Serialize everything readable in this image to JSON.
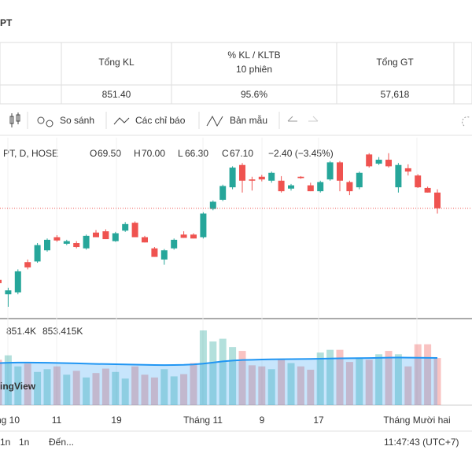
{
  "header": {
    "title": "PT"
  },
  "table": {
    "headers": [
      "Tổng KL",
      "% KL / KLTB",
      "10 phiên",
      "Tổng GT"
    ],
    "values": [
      "851.40",
      "95.6%",
      "57,618"
    ]
  },
  "toolbar": {
    "items": [
      "So sánh",
      "Các chỉ báo",
      "Bản mẫu"
    ]
  },
  "legend": {
    "symbol": "PT, D, HOSE",
    "o_label": "O",
    "o": "69.50",
    "h_label": "H",
    "h": "70.00",
    "l_label": "L",
    "l": "66.30",
    "c_label": "C",
    "c": "67.10",
    "change": "−2.40 (−3.45%)",
    "volume": "851.4K",
    "volume_ma": "853.415K",
    "watermark": "ingView"
  },
  "footer": {
    "ranges": [
      "1n",
      "1n",
      "Đến..."
    ],
    "time": "11:47:43 (UTC+7)"
  },
  "chart_data": {
    "type": "candlestick",
    "x_labels": [
      "ng 10",
      "11",
      "19",
      "Tháng 11",
      "9",
      "17",
      "Tháng Mười hai"
    ],
    "ylim": [
      50.3,
      77.5
    ],
    "volume_lim": [
      0,
      1450
    ],
    "up_color": "#26a69a",
    "down_color": "#ef5350",
    "open": [
      56.2,
      54.0,
      54.3,
      58.9,
      59.0,
      60.7,
      62.7,
      61.7,
      61.8,
      61.0,
      63.4,
      63.6,
      62.1,
      63.7,
      64.9,
      62.7,
      61.0,
      59.3,
      61.0,
      63.1,
      63.1,
      62.7,
      67.0,
      68.4,
      70.3,
      73.7,
      71.5,
      71.9,
      71.3,
      71.3,
      70.1,
      71.9,
      70.6,
      69.7,
      71.5,
      74.1,
      71.1,
      70.3,
      75.3,
      73.9,
      74.5,
      70.3,
      73.2,
      72.1,
      70.2,
      69.5
    ],
    "high": [
      56.6,
      55.0,
      57.8,
      59.3,
      61.8,
      62.5,
      63.0,
      62.3,
      62.1,
      63.1,
      63.8,
      63.9,
      63.5,
      65.0,
      65.1,
      62.9,
      61.2,
      60.9,
      62.5,
      63.6,
      63.3,
      66.5,
      68.3,
      70.7,
      73.5,
      74.0,
      71.9,
      72.2,
      72.7,
      72.0,
      70.8,
      72.0,
      71.0,
      71.3,
      74.3,
      74.3,
      71.3,
      72.7,
      75.5,
      74.9,
      75.5,
      74.0,
      73.8,
      72.3,
      70.4,
      70.0
    ],
    "low": [
      55.0,
      52.1,
      54.0,
      57.8,
      58.8,
      60.5,
      62.0,
      61.5,
      61.0,
      60.8,
      62.7,
      62.4,
      62.0,
      63.5,
      62.7,
      61.9,
      59.7,
      58.5,
      60.8,
      62.6,
      62.5,
      62.5,
      66.8,
      68.2,
      70.0,
      69.5,
      69.8,
      71.2,
      71.0,
      69.5,
      69.8,
      71.6,
      69.7,
      69.5,
      71.3,
      69.7,
      69.1,
      70.0,
      73.3,
      73.7,
      73.3,
      69.5,
      72.1,
      70.2,
      69.5,
      66.3
    ],
    "close": [
      55.7,
      54.6,
      57.5,
      58.1,
      61.5,
      62.3,
      62.2,
      62.1,
      61.2,
      62.9,
      62.7,
      62.4,
      63.3,
      64.7,
      62.7,
      61.9,
      59.7,
      60.7,
      62.3,
      62.6,
      62.5,
      66.3,
      68.1,
      70.5,
      73.3,
      71.3,
      71.3,
      71.5,
      72.5,
      69.7,
      70.6,
      71.7,
      69.7,
      71.1,
      74.1,
      71.3,
      69.7,
      72.5,
      73.5,
      74.5,
      73.5,
      73.7,
      72.7,
      70.3,
      69.5,
      67.1
    ],
    "volume": [
      820,
      900,
      700,
      750,
      600,
      650,
      700,
      550,
      620,
      500,
      580,
      660,
      600,
      480,
      700,
      550,
      500,
      650,
      520,
      560,
      760,
      1350,
      1150,
      1200,
      1050,
      980,
      720,
      700,
      650,
      820,
      760,
      700,
      640,
      950,
      1000,
      1000,
      780,
      850,
      820,
      920,
      980,
      920,
      700,
      1100,
      1100,
      851.4
    ],
    "volume_ma": [
      760,
      765,
      770,
      770,
      768,
      765,
      762,
      758,
      755,
      750,
      745,
      742,
      740,
      735,
      732,
      728,
      725,
      724,
      725,
      728,
      735,
      750,
      770,
      790,
      805,
      815,
      820,
      825,
      828,
      830,
      832,
      834,
      835,
      838,
      842,
      846,
      848,
      850,
      852,
      855,
      858,
      860,
      858,
      856,
      855,
      853.415
    ]
  }
}
